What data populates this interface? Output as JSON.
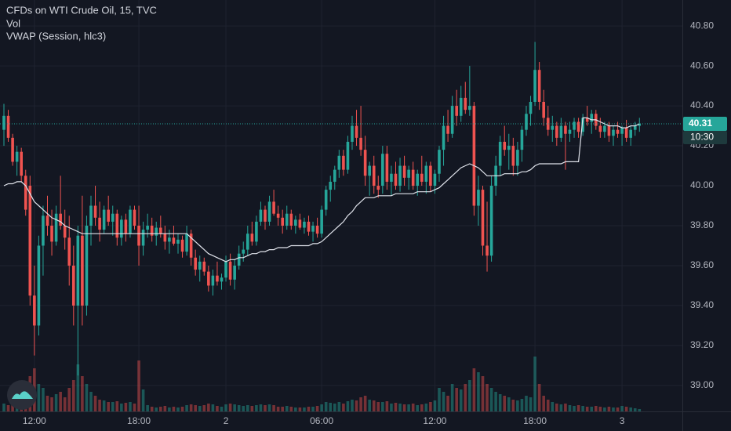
{
  "chart_data": {
    "type": "candlestick",
    "title": "CFDs on WTI Crude Oil, 15, TVC",
    "indicators": [
      "Vol",
      "VWAP (Session, hlc3)"
    ],
    "up_color": "#26a69a",
    "down_color": "#ef5350",
    "vwap_color": "#e0e3eb",
    "xlim": [
      -0.9,
      155.86
    ],
    "xticks": [
      {
        "value": 7,
        "label": "12:00"
      },
      {
        "value": 31,
        "label": "18:00"
      },
      {
        "value": 51,
        "label": "2"
      },
      {
        "value": 73,
        "label": "06:00"
      },
      {
        "value": 99,
        "label": "12:00"
      },
      {
        "value": 122,
        "label": "18:00"
      },
      {
        "value": 142,
        "label": "3"
      }
    ],
    "ylim": [
      38.87,
      40.93
    ],
    "yticks": [
      {
        "value": 40.8,
        "label": "40.80"
      },
      {
        "value": 40.6,
        "label": "40.60"
      },
      {
        "value": 40.4,
        "label": "40.40"
      },
      {
        "value": 40.2,
        "label": "40.20"
      },
      {
        "value": 40.0,
        "label": "40.00"
      },
      {
        "value": 39.8,
        "label": "39.80"
      },
      {
        "value": 39.6,
        "label": "39.60"
      },
      {
        "value": 39.4,
        "label": "39.40"
      },
      {
        "value": 39.2,
        "label": "39.20"
      },
      {
        "value": 39.0,
        "label": "39.00"
      }
    ],
    "volume_lim": [
      0,
      100
    ],
    "last_price": {
      "value": 40.31,
      "label": "40.31"
    },
    "countdown": "10:30",
    "grid": true,
    "candles": [
      [
        40.28,
        40.41,
        40.2,
        40.35,
        10
      ],
      [
        40.35,
        40.38,
        40.22,
        40.24,
        8
      ],
      [
        40.24,
        40.26,
        40.1,
        40.12,
        12
      ],
      [
        40.12,
        40.2,
        40.05,
        40.17,
        9
      ],
      [
        40.17,
        40.19,
        40.02,
        40.05,
        11
      ],
      [
        40.05,
        40.08,
        39.85,
        39.88,
        20
      ],
      [
        40.0,
        40.05,
        39.4,
        39.45,
        45
      ],
      [
        39.45,
        39.6,
        39.15,
        39.3,
        55
      ],
      [
        39.3,
        39.75,
        39.25,
        39.7,
        35
      ],
      [
        39.7,
        39.9,
        39.55,
        39.85,
        30
      ],
      [
        39.85,
        39.95,
        39.75,
        39.8,
        20
      ],
      [
        39.8,
        39.88,
        39.65,
        39.72,
        18
      ],
      [
        39.72,
        39.9,
        39.7,
        39.86,
        22
      ],
      [
        39.86,
        40.05,
        39.78,
        39.8,
        25
      ],
      [
        39.8,
        39.88,
        39.68,
        39.74,
        18
      ],
      [
        39.74,
        39.85,
        39.5,
        39.6,
        30
      ],
      [
        39.6,
        39.7,
        39.3,
        39.4,
        40
      ],
      [
        39.4,
        39.8,
        39.05,
        39.75,
        60
      ],
      [
        39.75,
        39.95,
        39.3,
        39.4,
        45
      ],
      [
        39.4,
        39.85,
        39.35,
        39.8,
        35
      ],
      [
        39.8,
        39.95,
        39.7,
        39.9,
        25
      ],
      [
        39.9,
        40.0,
        39.8,
        39.84,
        20
      ],
      [
        39.84,
        39.92,
        39.72,
        39.78,
        15
      ],
      [
        39.78,
        39.9,
        39.76,
        39.88,
        14
      ],
      [
        39.88,
        39.95,
        39.8,
        39.82,
        12
      ],
      [
        39.82,
        39.9,
        39.75,
        39.86,
        12
      ],
      [
        39.86,
        39.88,
        39.7,
        39.74,
        13
      ],
      [
        39.74,
        39.85,
        39.7,
        39.83,
        10
      ],
      [
        39.83,
        39.86,
        39.72,
        39.76,
        11
      ],
      [
        39.76,
        39.9,
        39.74,
        39.88,
        12
      ],
      [
        39.88,
        39.9,
        39.78,
        39.8,
        10
      ],
      [
        39.8,
        39.9,
        39.6,
        39.7,
        65
      ],
      [
        39.7,
        39.82,
        39.65,
        39.78,
        28
      ],
      [
        39.78,
        39.86,
        39.74,
        39.8,
        8
      ],
      [
        39.8,
        39.84,
        39.72,
        39.75,
        6
      ],
      [
        39.75,
        39.82,
        39.7,
        39.79,
        5
      ],
      [
        39.79,
        39.85,
        39.74,
        39.76,
        6
      ],
      [
        39.76,
        39.8,
        39.68,
        39.72,
        7
      ],
      [
        39.72,
        39.78,
        39.66,
        39.74,
        5
      ],
      [
        39.74,
        39.8,
        39.7,
        39.71,
        6
      ],
      [
        39.71,
        39.76,
        39.66,
        39.73,
        5
      ],
      [
        39.73,
        39.75,
        39.64,
        39.67,
        6
      ],
      [
        39.67,
        39.8,
        39.65,
        39.76,
        8
      ],
      [
        39.76,
        39.78,
        39.6,
        39.64,
        9
      ],
      [
        39.64,
        39.68,
        39.55,
        39.58,
        8
      ],
      [
        39.58,
        39.65,
        39.52,
        39.62,
        7
      ],
      [
        39.62,
        39.64,
        39.55,
        39.57,
        8
      ],
      [
        39.57,
        39.6,
        39.47,
        39.5,
        10
      ],
      [
        39.5,
        39.58,
        39.45,
        39.55,
        9
      ],
      [
        39.55,
        39.62,
        39.5,
        39.52,
        7
      ],
      [
        39.52,
        39.56,
        39.48,
        39.54,
        6
      ],
      [
        39.54,
        39.65,
        39.52,
        39.62,
        9
      ],
      [
        39.62,
        39.66,
        39.5,
        39.53,
        10
      ],
      [
        39.53,
        39.63,
        39.48,
        39.6,
        9
      ],
      [
        39.6,
        39.7,
        39.58,
        39.66,
        8
      ],
      [
        39.66,
        39.72,
        39.62,
        39.68,
        7
      ],
      [
        39.68,
        39.8,
        39.65,
        39.76,
        8
      ],
      [
        39.76,
        39.82,
        39.7,
        39.72,
        7
      ],
      [
        39.72,
        39.85,
        39.7,
        39.82,
        8
      ],
      [
        39.82,
        39.92,
        39.8,
        39.88,
        9
      ],
      [
        39.88,
        39.9,
        39.78,
        39.82,
        8
      ],
      [
        39.82,
        39.95,
        39.8,
        39.92,
        9
      ],
      [
        39.92,
        39.98,
        39.85,
        39.86,
        8
      ],
      [
        39.86,
        39.9,
        39.8,
        39.84,
        6
      ],
      [
        39.84,
        39.88,
        39.76,
        39.8,
        6
      ],
      [
        39.8,
        39.9,
        39.78,
        39.86,
        7
      ],
      [
        39.86,
        39.88,
        39.78,
        39.8,
        6
      ],
      [
        39.8,
        39.85,
        39.76,
        39.83,
        5
      ],
      [
        39.83,
        39.86,
        39.78,
        39.79,
        5
      ],
      [
        39.79,
        39.84,
        39.76,
        39.82,
        5
      ],
      [
        39.82,
        39.85,
        39.75,
        39.77,
        6
      ],
      [
        39.77,
        39.82,
        39.72,
        39.8,
        6
      ],
      [
        39.8,
        39.84,
        39.74,
        39.76,
        7
      ],
      [
        39.76,
        39.9,
        39.74,
        39.88,
        9
      ],
      [
        39.88,
        40.0,
        39.85,
        39.98,
        12
      ],
      [
        39.98,
        40.05,
        39.92,
        40.02,
        11
      ],
      [
        40.02,
        40.1,
        39.98,
        40.08,
        10
      ],
      [
        40.08,
        40.18,
        40.04,
        40.15,
        12
      ],
      [
        40.15,
        40.18,
        40.05,
        40.08,
        10
      ],
      [
        40.08,
        40.25,
        40.06,
        40.22,
        13
      ],
      [
        40.22,
        40.35,
        40.18,
        40.3,
        15
      ],
      [
        40.3,
        40.38,
        40.2,
        40.24,
        14
      ],
      [
        40.24,
        40.4,
        40.15,
        40.18,
        18
      ],
      [
        40.18,
        40.25,
        40.0,
        40.05,
        20
      ],
      [
        40.05,
        40.12,
        39.95,
        40.1,
        15
      ],
      [
        40.1,
        40.15,
        39.96,
        40.0,
        14
      ],
      [
        40.0,
        40.05,
        39.94,
        39.98,
        12
      ],
      [
        40.0,
        40.2,
        39.96,
        40.16,
        12
      ],
      [
        40.16,
        40.2,
        39.98,
        40.02,
        13
      ],
      [
        40.02,
        40.1,
        39.95,
        40.06,
        10
      ],
      [
        40.06,
        40.12,
        39.98,
        40.0,
        11
      ],
      [
        40.0,
        40.14,
        39.97,
        40.1,
        10
      ],
      [
        40.1,
        40.15,
        40.0,
        40.04,
        9
      ],
      [
        40.04,
        40.1,
        39.98,
        40.08,
        9
      ],
      [
        40.08,
        40.12,
        39.98,
        40.0,
        10
      ],
      [
        40.0,
        40.08,
        39.95,
        40.06,
        8
      ],
      [
        40.06,
        40.15,
        40.0,
        40.02,
        9
      ],
      [
        40.02,
        40.12,
        39.96,
        40.1,
        10
      ],
      [
        40.1,
        40.12,
        39.97,
        40.0,
        12
      ],
      [
        40.0,
        40.08,
        39.96,
        40.06,
        14
      ],
      [
        40.06,
        40.2,
        40.02,
        40.18,
        30
      ],
      [
        40.18,
        40.35,
        40.1,
        40.3,
        25
      ],
      [
        40.3,
        40.38,
        40.22,
        40.26,
        20
      ],
      [
        40.26,
        40.45,
        40.24,
        40.4,
        35
      ],
      [
        40.4,
        40.48,
        40.3,
        40.35,
        30
      ],
      [
        40.35,
        40.5,
        40.32,
        40.44,
        28
      ],
      [
        40.44,
        40.52,
        40.36,
        40.38,
        35
      ],
      [
        40.38,
        40.6,
        40.35,
        40.4,
        40
      ],
      [
        40.4,
        40.42,
        39.85,
        39.9,
        55
      ],
      [
        39.9,
        40.05,
        39.8,
        39.98,
        50
      ],
      [
        39.98,
        40.0,
        39.65,
        39.7,
        45
      ],
      [
        39.7,
        39.92,
        39.57,
        39.65,
        35
      ],
      [
        39.65,
        40.05,
        39.62,
        40.0,
        30
      ],
      [
        40.0,
        40.15,
        39.95,
        40.1,
        25
      ],
      [
        40.1,
        40.25,
        40.05,
        40.22,
        22
      ],
      [
        40.22,
        40.3,
        40.15,
        40.18,
        20
      ],
      [
        40.18,
        40.26,
        40.08,
        40.2,
        18
      ],
      [
        40.2,
        40.24,
        40.05,
        40.1,
        15
      ],
      [
        40.1,
        40.22,
        40.05,
        40.18,
        14
      ],
      [
        40.18,
        40.3,
        40.12,
        40.28,
        16
      ],
      [
        40.28,
        40.4,
        40.25,
        40.36,
        20
      ],
      [
        40.36,
        40.45,
        40.3,
        40.42,
        18
      ],
      [
        40.42,
        40.72,
        40.4,
        40.58,
        70
      ],
      [
        40.58,
        40.62,
        40.38,
        40.42,
        35
      ],
      [
        40.42,
        40.48,
        40.3,
        40.34,
        20
      ],
      [
        40.34,
        40.4,
        40.25,
        40.28,
        15
      ],
      [
        40.28,
        40.35,
        40.22,
        40.3,
        12
      ],
      [
        40.3,
        40.32,
        40.2,
        40.24,
        10
      ],
      [
        40.24,
        40.34,
        40.22,
        40.3,
        9
      ],
      [
        40.3,
        40.32,
        40.08,
        40.26,
        10
      ],
      [
        40.26,
        40.32,
        40.22,
        40.28,
        8
      ],
      [
        40.28,
        40.34,
        40.24,
        40.32,
        7
      ],
      [
        40.32,
        40.34,
        40.24,
        40.27,
        8
      ],
      [
        40.27,
        40.36,
        40.25,
        40.34,
        7
      ],
      [
        40.34,
        40.4,
        40.3,
        40.32,
        6
      ],
      [
        40.32,
        40.38,
        40.26,
        40.36,
        6
      ],
      [
        40.36,
        40.38,
        40.28,
        40.3,
        7
      ],
      [
        40.3,
        40.34,
        40.24,
        40.27,
        6
      ],
      [
        40.27,
        40.32,
        40.24,
        40.3,
        5
      ],
      [
        40.3,
        40.32,
        40.22,
        40.25,
        6
      ],
      [
        40.25,
        40.3,
        40.2,
        40.28,
        5
      ],
      [
        40.28,
        40.32,
        40.24,
        40.26,
        5
      ],
      [
        40.26,
        40.3,
        40.2,
        40.29,
        7
      ],
      [
        40.29,
        40.33,
        40.22,
        40.24,
        6
      ],
      [
        40.24,
        40.3,
        40.2,
        40.28,
        5
      ],
      [
        40.28,
        40.32,
        40.25,
        40.3,
        4
      ],
      [
        40.3,
        40.34,
        40.27,
        40.31,
        3
      ]
    ],
    "vwap": [
      40.0,
      40.01,
      40.01,
      40.02,
      40.02,
      40.0,
      39.96,
      39.92,
      39.9,
      39.88,
      39.86,
      39.84,
      39.83,
      39.82,
      39.8,
      39.79,
      39.78,
      39.77,
      39.76,
      39.76,
      39.76,
      39.76,
      39.76,
      39.76,
      39.76,
      39.76,
      39.76,
      39.76,
      39.76,
      39.76,
      39.76,
      39.76,
      39.76,
      39.76,
      39.76,
      39.76,
      39.76,
      39.76,
      39.76,
      39.76,
      39.76,
      39.76,
      39.76,
      39.74,
      39.72,
      39.7,
      39.68,
      39.66,
      39.65,
      39.64,
      39.63,
      39.62,
      39.63,
      39.63,
      39.64,
      39.64,
      39.65,
      39.66,
      39.66,
      39.67,
      39.67,
      39.68,
      39.68,
      39.69,
      39.69,
      39.69,
      39.7,
      39.7,
      39.7,
      39.7,
      39.7,
      39.71,
      39.71,
      39.72,
      39.74,
      39.76,
      39.78,
      39.8,
      39.82,
      39.85,
      39.87,
      39.9,
      39.92,
      39.94,
      39.94,
      39.94,
      39.95,
      39.95,
      39.95,
      39.95,
      39.96,
      39.96,
      39.96,
      39.96,
      39.96,
      39.97,
      39.97,
      39.97,
      39.97,
      39.98,
      39.99,
      40.01,
      40.03,
      40.05,
      40.07,
      40.09,
      40.1,
      40.11,
      40.1,
      40.09,
      40.07,
      40.05,
      40.05,
      40.05,
      40.05,
      40.06,
      40.06,
      40.06,
      40.06,
      40.07,
      40.07,
      40.08,
      40.1,
      40.11,
      40.11,
      40.11,
      40.11,
      40.11,
      40.11,
      40.12,
      40.12,
      40.12,
      40.12,
      40.34,
      40.34,
      40.33,
      40.33,
      40.32,
      40.31,
      40.3,
      40.3,
      40.3,
      40.29,
      40.29,
      40.3,
      40.3,
      40.31
    ]
  }
}
